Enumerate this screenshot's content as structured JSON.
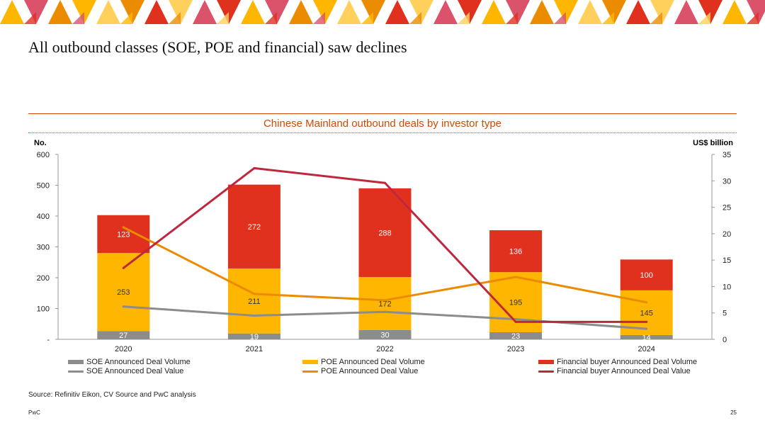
{
  "slide": {
    "title": "All outbound classes (SOE, POE and financial) saw declines",
    "source": "Source: Refinitiv Eikon, CV Source and PwC analysis",
    "brand": "PwC",
    "page_number": "25",
    "banner_colors": [
      "#ffb600",
      "#e0301e",
      "#eb8c00",
      "#db536a",
      "#ffd15c"
    ]
  },
  "chart_data": {
    "type": "bar",
    "title": "Chinese Mainland outbound deals by investor type",
    "categories": [
      "2020",
      "2021",
      "2022",
      "2023",
      "2024"
    ],
    "left_axis": {
      "label": "No.",
      "ticks": [
        "-",
        "100",
        "200",
        "300",
        "400",
        "500",
        "600"
      ],
      "range": [
        0,
        600
      ]
    },
    "right_axis": {
      "label": "US$ billion",
      "ticks": [
        "0",
        "5",
        "10",
        "15",
        "20",
        "25",
        "30",
        "35"
      ],
      "range": [
        0,
        35
      ]
    },
    "bar_series": [
      {
        "name": "SOE Announced Deal Volume",
        "color": "#8c8c8c",
        "values": [
          27,
          19,
          30,
          23,
          14
        ]
      },
      {
        "name": "POE Announced Deal Volume",
        "color": "#ffb600",
        "values": [
          253,
          211,
          172,
          195,
          145
        ]
      },
      {
        "name": "Financial buyer Announced Deal Volume",
        "color": "#e0301e",
        "values": [
          123,
          272,
          288,
          136,
          100
        ]
      }
    ],
    "line_series": [
      {
        "name": "SOE Announced Deal Value",
        "color": "#8c8c8c",
        "values": [
          6.2,
          4.5,
          5.2,
          3.8,
          2.0
        ]
      },
      {
        "name": "POE Announced Deal Value",
        "color": "#eb8c00",
        "values": [
          21.2,
          8.6,
          7.4,
          11.8,
          7.0
        ]
      },
      {
        "name": "Financial buyer Announced Deal Value",
        "color": "#c0273d",
        "values": [
          13.5,
          32.4,
          29.6,
          3.3,
          3.3
        ]
      }
    ],
    "legend": [
      "SOE Announced Deal Volume",
      "POE Announced Deal Volume",
      "Financial buyer Announced Deal Volume",
      "SOE Announced Deal Value",
      "POE Announced Deal Value",
      "Financial buyer Announced Deal Value"
    ]
  }
}
